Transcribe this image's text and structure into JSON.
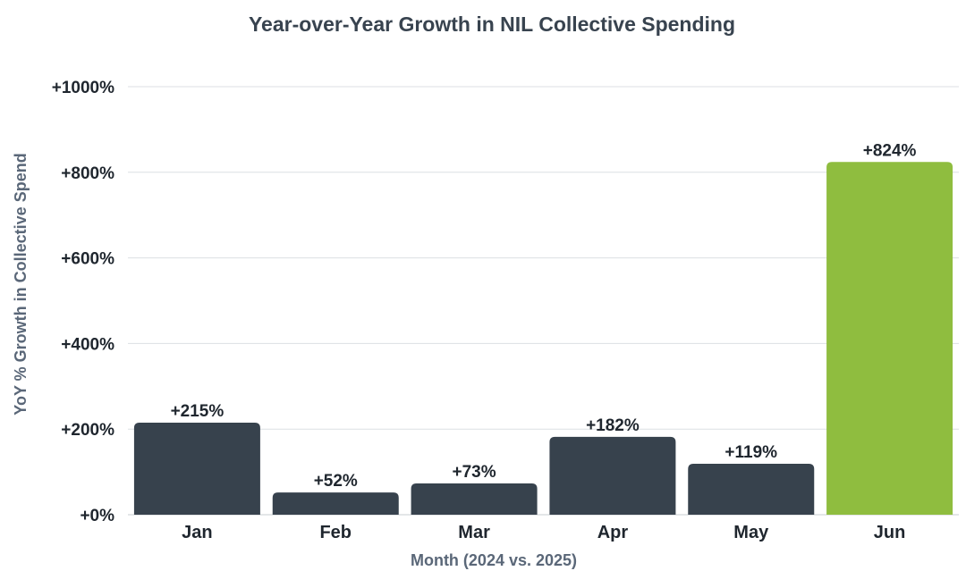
{
  "chart_data": {
    "type": "bar",
    "title": "Year-over-Year Growth in NIL Collective Spending",
    "xlabel": "Month (2024 vs. 2025)",
    "ylabel": "YoY % Growth in Collective Spend",
    "categories": [
      "Jan",
      "Feb",
      "Mar",
      "Apr",
      "May",
      "Jun"
    ],
    "values": [
      215,
      52,
      73,
      182,
      119,
      824
    ],
    "data_labels": [
      "+215%",
      "+52%",
      "+73%",
      "+182%",
      "+119%",
      "+824%"
    ],
    "ylim": [
      0,
      1000
    ],
    "yticks": [
      0,
      200,
      400,
      600,
      800,
      1000
    ],
    "ytick_labels": [
      "+0%",
      "+200%",
      "+400%",
      "+600%",
      "+800%",
      "+1000%"
    ],
    "grid": true,
    "colors": {
      "default_bar": "#37424d",
      "highlight_bar": "#8fbd3f",
      "highlight_category": "Jun"
    }
  }
}
